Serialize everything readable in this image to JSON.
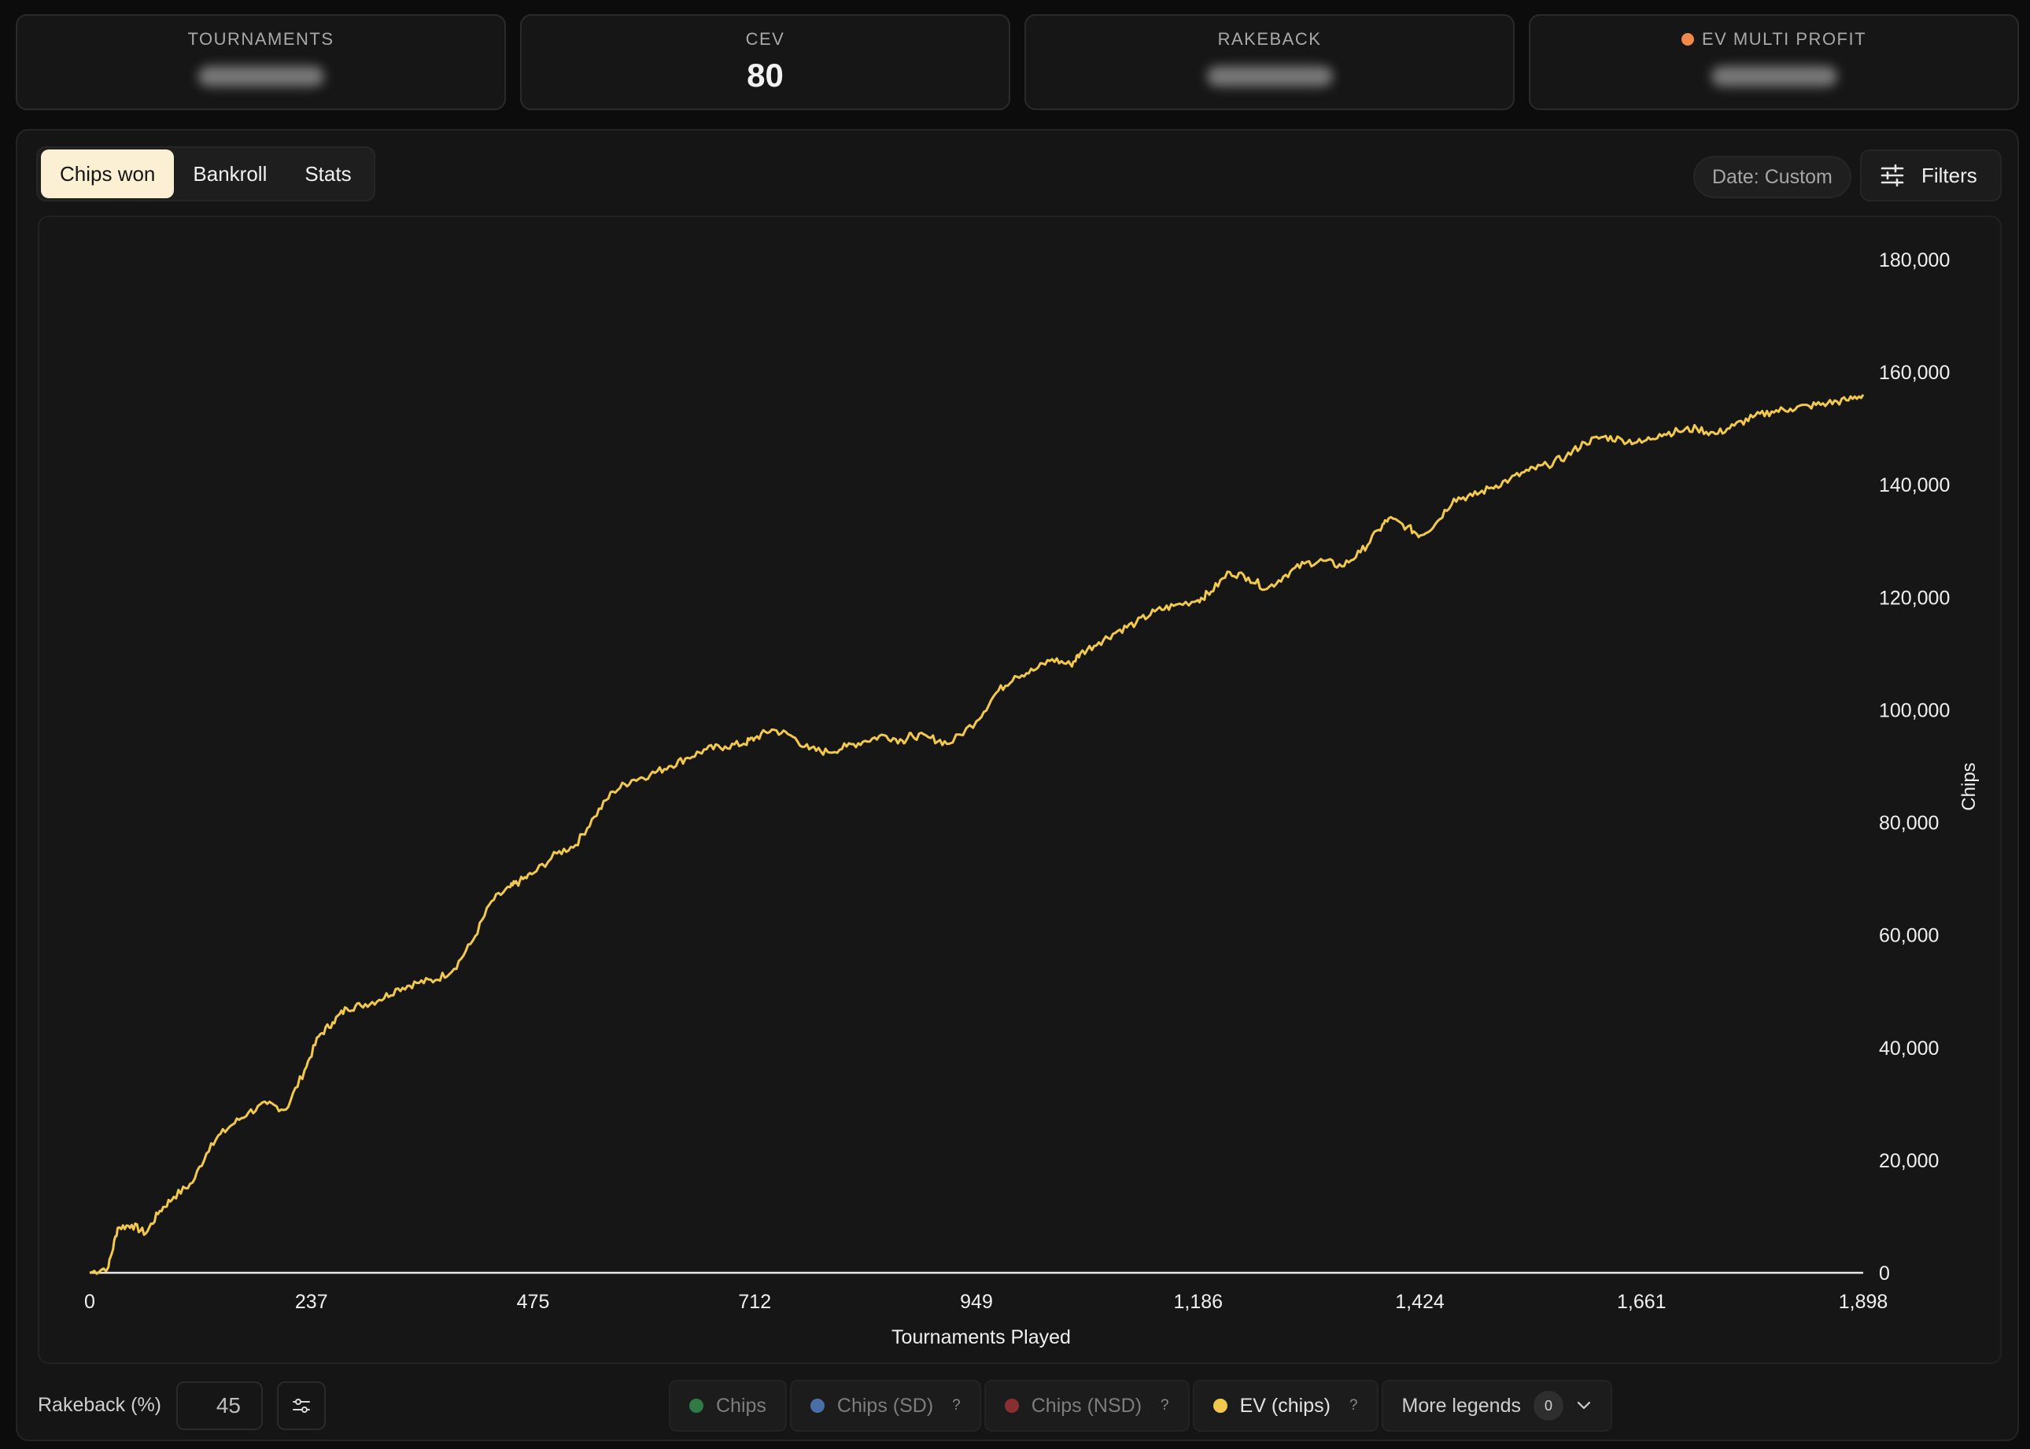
{
  "stats": [
    {
      "label": "TOURNAMENTS",
      "value": null,
      "hidden": true
    },
    {
      "label": "CEV",
      "value": "80",
      "hidden": false
    },
    {
      "label": "RAKEBACK",
      "value": null,
      "hidden": true
    },
    {
      "label": "EV MULTI PROFIT",
      "value": null,
      "hidden": true,
      "indicator_color": "#f0874c"
    }
  ],
  "tabs": [
    {
      "label": "Chips won",
      "active": true
    },
    {
      "label": "Bankroll",
      "active": false
    },
    {
      "label": "Stats",
      "active": false
    }
  ],
  "date_filter": {
    "label": "Date: Custom"
  },
  "filters_button": {
    "label": "Filters",
    "icon": "sliders-icon"
  },
  "rakeback": {
    "label": "Rakeback (%)",
    "value": "45",
    "settings_icon": "adjustments-icon"
  },
  "legends": [
    {
      "label": "Chips",
      "color": "#2f7a45",
      "help": false,
      "active": false
    },
    {
      "label": "Chips (SD)",
      "color": "#4a6fa8",
      "help": true,
      "active": false
    },
    {
      "label": "Chips (NSD)",
      "color": "#8a2f2f",
      "help": true,
      "active": false
    },
    {
      "label": "EV (chips)",
      "color": "#f2c94c",
      "help": true,
      "active": true
    }
  ],
  "help_mark": "?",
  "more_legends": {
    "label": "More legends",
    "count": "0"
  },
  "chart_data": {
    "type": "line",
    "xlabel": "Tournaments Played",
    "ylabel": "Chips",
    "xlim": [
      0,
      1898
    ],
    "ylim": [
      0,
      180000
    ],
    "x_ticks": [
      "0",
      "237",
      "475",
      "712",
      "949",
      "1,186",
      "1,424",
      "1,661",
      "1,898"
    ],
    "y_ticks": [
      "0",
      "20,000",
      "40,000",
      "60,000",
      "80,000",
      "100,000",
      "120,000",
      "140,000",
      "160,000",
      "180,000"
    ],
    "y_axis_position": "right",
    "grid": false,
    "series": [
      {
        "color": "#f2c94c",
        "x": [
          0,
          20,
          30,
          45,
          60,
          75,
          90,
          110,
          130,
          150,
          170,
          190,
          210,
          230,
          245,
          260,
          275,
          290,
          310,
          330,
          350,
          370,
          390,
          410,
          430,
          450,
          460,
          475,
          500,
          520,
          540,
          560,
          580,
          600,
          620,
          640,
          660,
          680,
          700,
          712,
          730,
          750,
          770,
          790,
          810,
          830,
          850,
          870,
          880,
          900,
          920,
          949,
          970,
          990,
          1010,
          1030,
          1050,
          1060,
          1080,
          1100,
          1120,
          1140,
          1160,
          1186,
          1200,
          1220,
          1240,
          1260,
          1280,
          1300,
          1320,
          1340,
          1360,
          1380,
          1390,
          1410,
          1424,
          1440,
          1460,
          1480,
          1500,
          1520,
          1540,
          1560,
          1580,
          1600,
          1620,
          1640,
          1661,
          1680,
          1700,
          1720,
          1740,
          1760,
          1780,
          1800,
          1820,
          1840,
          1860,
          1880,
          1898
        ],
        "y": [
          0,
          1000,
          8000,
          8500,
          7000,
          11000,
          13500,
          16000,
          23000,
          26000,
          28500,
          30000,
          29000,
          36000,
          42000,
          44500,
          47000,
          47500,
          48500,
          50500,
          51500,
          52000,
          54000,
          59000,
          66000,
          68500,
          69500,
          71000,
          74500,
          76000,
          81000,
          85500,
          87500,
          88500,
          90000,
          91500,
          93000,
          93500,
          94000,
          95000,
          96500,
          95500,
          93000,
          92500,
          93500,
          94500,
          95500,
          94500,
          95500,
          95000,
          94000,
          98000,
          103000,
          106000,
          107000,
          109000,
          108000,
          110000,
          112000,
          114000,
          115500,
          117500,
          118500,
          119500,
          121000,
          124500,
          123500,
          121500,
          124000,
          126000,
          126500,
          125500,
          128000,
          132000,
          134000,
          132500,
          131000,
          133000,
          137500,
          138000,
          139500,
          141000,
          142500,
          143500,
          145000,
          147500,
          148500,
          148000,
          147500,
          149000,
          149500,
          150000,
          149000,
          150500,
          152000,
          153000,
          153500,
          154000,
          154500,
          155000,
          156000
        ]
      }
    ]
  }
}
